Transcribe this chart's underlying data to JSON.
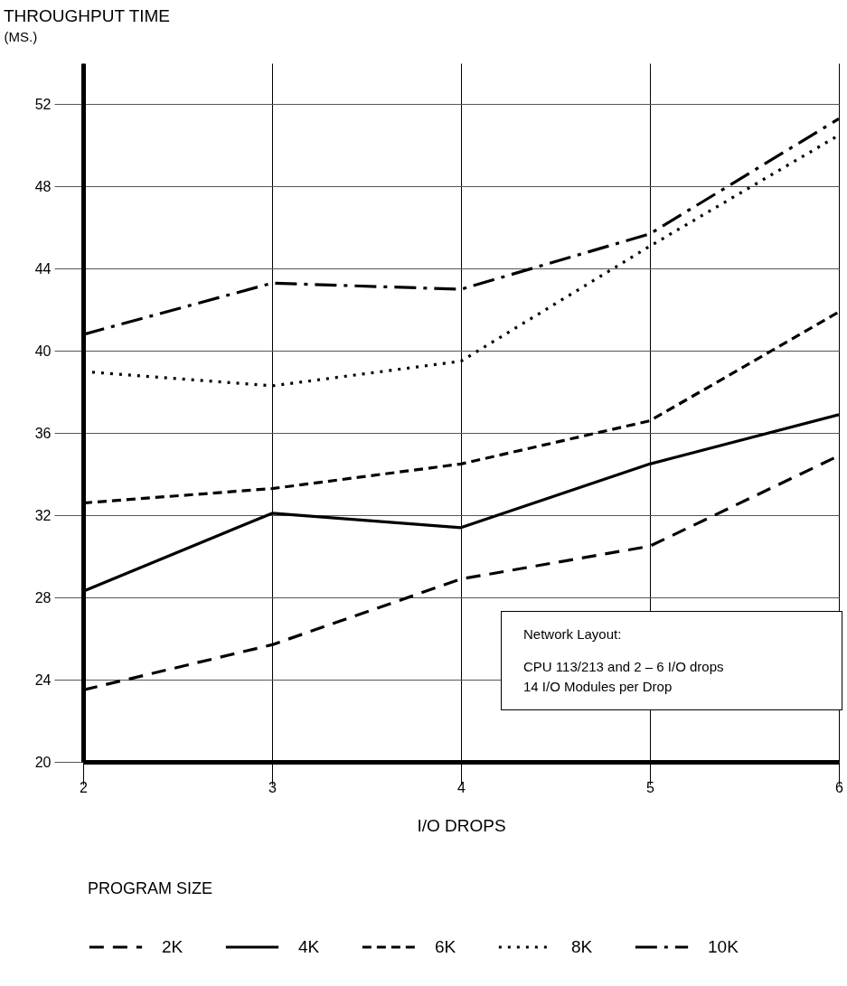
{
  "chart_data": {
    "type": "line",
    "title": "THROUGHPUT TIME",
    "ylabel": "(MS.)",
    "xlabel": "I/O DROPS",
    "legend_title": "PROGRAM SIZE",
    "x": [
      2,
      3,
      4,
      5,
      6
    ],
    "series": [
      {
        "name": "2K",
        "color": "#000000",
        "line_style": "dashed",
        "values": [
          23.5,
          25.7,
          28.9,
          30.5,
          34.9
        ]
      },
      {
        "name": "4K",
        "color": "#000000",
        "line_style": "solid",
        "values": [
          28.3,
          32.1,
          31.4,
          34.5,
          36.9
        ]
      },
      {
        "name": "6K",
        "color": "#000000",
        "line_style": "dashed",
        "values": [
          32.6,
          33.3,
          34.5,
          36.6,
          41.9
        ]
      },
      {
        "name": "8K",
        "color": "#000000",
        "line_style": "dotted",
        "values": [
          39.0,
          38.3,
          39.5,
          45.1,
          50.5
        ]
      },
      {
        "name": "10K",
        "color": "#000000",
        "line_style": "dashed",
        "values": [
          40.8,
          43.3,
          43.0,
          45.7,
          51.3
        ]
      }
    ],
    "xlim": [
      2,
      6
    ],
    "xticks": [
      2,
      3,
      4,
      5,
      6
    ],
    "ylim": [
      20,
      54
    ],
    "yticks": [
      20,
      24,
      28,
      32,
      36,
      40,
      44,
      48,
      52
    ],
    "grid": true,
    "legend": "bottom",
    "annotations": [
      "Network Layout:",
      "CPU 113/213 and 2 – 6 I/O drops",
      "14 I/O Modules per Drop"
    ]
  }
}
